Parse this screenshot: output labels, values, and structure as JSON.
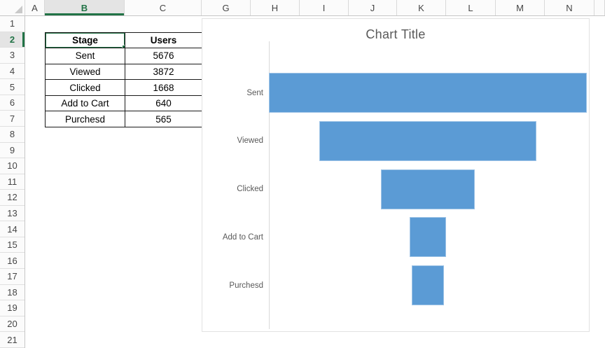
{
  "spreadsheet": {
    "column_headers": [
      "A",
      "B",
      "C",
      "G",
      "H",
      "I",
      "J",
      "K",
      "L",
      "M",
      "N",
      ""
    ],
    "active_column": "B",
    "row_headers": [
      "1",
      "2",
      "3",
      "4",
      "5",
      "6",
      "7",
      "8",
      "9",
      "10",
      "11",
      "12",
      "13",
      "14",
      "15",
      "16",
      "17",
      "18",
      "19",
      "20",
      "21"
    ],
    "active_row": "2",
    "selected_cell": "B2",
    "table": {
      "columns": [
        "Stage",
        "Users"
      ],
      "rows": [
        [
          "Sent",
          "5676"
        ],
        [
          "Viewed",
          "3872"
        ],
        [
          "Clicked",
          "1668"
        ],
        [
          "Add to Cart",
          "640"
        ],
        [
          "Purchesd",
          "565"
        ]
      ]
    }
  },
  "chart_data": {
    "type": "bar",
    "subtype": "funnel",
    "title": "Chart Title",
    "categories": [
      "Sent",
      "Viewed",
      "Clicked",
      "Add to Cart",
      "Purchesd"
    ],
    "values": [
      5676,
      3872,
      1668,
      640,
      565
    ],
    "xlabel": "",
    "ylabel": "",
    "legend": "none",
    "grid": false,
    "orientation": "horizontal-centered",
    "xlim": [
      0,
      5676
    ]
  },
  "colors": {
    "bar_blue": "#5B9BD5",
    "bar_edge": "#9dc3e6",
    "title_gray": "#595959",
    "label_gray": "#595959",
    "axis_gray": "#d9d9d9",
    "accent_green": "#217346"
  }
}
